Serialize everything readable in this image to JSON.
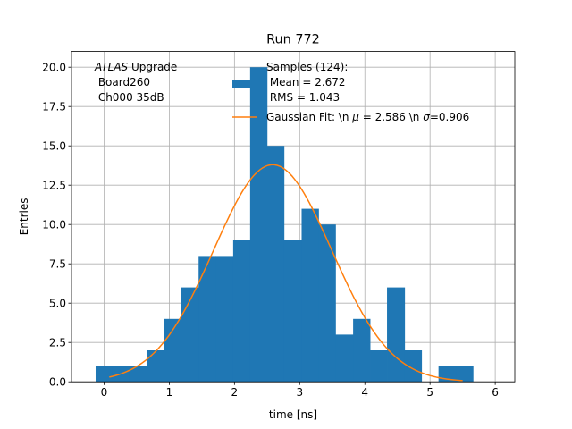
{
  "chart_data": {
    "type": "bar",
    "title": "Run 772",
    "xlabel": "time [ns]",
    "ylabel": "Entries",
    "xlim": [
      -0.5,
      6.3
    ],
    "ylim": [
      0,
      21
    ],
    "grid": true,
    "xticks": [
      0,
      1,
      2,
      3,
      4,
      5,
      6
    ],
    "xtick_labels": [
      "0",
      "1",
      "2",
      "3",
      "4",
      "5",
      "6"
    ],
    "yticks": [
      0,
      2.5,
      5,
      7.5,
      10,
      12.5,
      15,
      17.5,
      20
    ],
    "ytick_labels": [
      "0.0",
      "2.5",
      "5.0",
      "7.5",
      "10.0",
      "12.5",
      "15.0",
      "17.5",
      "20.0"
    ],
    "histogram": {
      "bin_edges": [
        -0.13,
        0.13,
        0.39,
        0.66,
        0.92,
        1.18,
        1.45,
        1.71,
        1.98,
        2.24,
        2.5,
        2.76,
        3.03,
        3.29,
        3.55,
        3.82,
        4.08,
        4.34,
        4.61,
        4.87,
        5.13,
        5.4,
        5.66
      ],
      "counts": [
        1,
        1,
        1,
        2,
        4,
        6,
        8,
        8,
        9,
        20,
        15,
        9,
        11,
        10,
        3,
        4,
        2,
        6,
        2,
        0,
        1,
        1
      ],
      "color": "#1f77b4"
    },
    "fit": {
      "type": "gaussian",
      "mu": 2.586,
      "sigma": 0.906,
      "amplitude": 13.8,
      "x_range": [
        0.08,
        5.5
      ],
      "color": "#ff7f0e"
    },
    "annotation": {
      "italic_part": "ATLAS",
      "first_line_rest": " Upgrade",
      "line2": " Board260",
      "line3": " Ch000 35dB"
    },
    "legend": {
      "placement": "upper center",
      "entries": [
        {
          "lines": [
            "Samples (124):",
            " Mean = 2.672",
            " RMS = 1.043"
          ],
          "marker": "patch",
          "color": "#1f77b4"
        },
        {
          "text_prefix": "Gaussian Fit: \\n ",
          "mu_symbol": "μ",
          "mu_text": " = 2.586 \\n ",
          "sigma_symbol": "σ",
          "sigma_text": "=0.906",
          "marker": "line",
          "color": "#ff7f0e"
        }
      ]
    }
  }
}
